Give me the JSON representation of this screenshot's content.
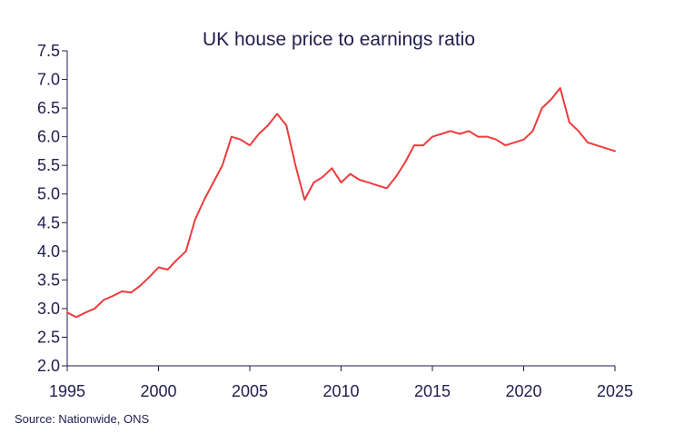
{
  "chart_data": {
    "type": "line",
    "title": "UK house price to earnings ratio",
    "xlabel": "",
    "ylabel": "",
    "source": "Source: Nationwide, ONS",
    "xlim": [
      1995,
      2025
    ],
    "ylim": [
      2.0,
      7.5
    ],
    "x_ticks": [
      1995,
      2000,
      2005,
      2010,
      2015,
      2020,
      2025
    ],
    "x_tick_labels": [
      "1995",
      "2000",
      "2005",
      "2010",
      "2015",
      "2020",
      "2025"
    ],
    "y_ticks": [
      2.0,
      2.5,
      3.0,
      3.5,
      4.0,
      4.5,
      5.0,
      5.5,
      6.0,
      6.5,
      7.0,
      7.5
    ],
    "y_tick_labels": [
      "2.0",
      "2.5",
      "3.0",
      "3.5",
      "4.0",
      "4.5",
      "5.0",
      "5.5",
      "6.0",
      "6.5",
      "7.0",
      "7.5"
    ],
    "grid": false,
    "legend": "none",
    "colors": {
      "line": "#ee3b3b",
      "axis": "#1f1d4f",
      "text": "#1f1d4f"
    },
    "series": [
      {
        "name": "UK house price to earnings ratio",
        "x": [
          1995.0,
          1995.5,
          1996.0,
          1996.5,
          1997.0,
          1997.5,
          1998.0,
          1998.5,
          1999.0,
          1999.5,
          2000.0,
          2000.5,
          2001.0,
          2001.5,
          2002.0,
          2002.5,
          2003.0,
          2003.5,
          2004.0,
          2004.5,
          2005.0,
          2005.5,
          2006.0,
          2006.5,
          2007.0,
          2007.5,
          2008.0,
          2008.5,
          2009.0,
          2009.5,
          2010.0,
          2010.5,
          2011.0,
          2011.5,
          2012.0,
          2012.5,
          2013.0,
          2013.5,
          2014.0,
          2014.5,
          2015.0,
          2015.5,
          2016.0,
          2016.5,
          2017.0,
          2017.5,
          2018.0,
          2018.5,
          2019.0,
          2019.5,
          2020.0,
          2020.5,
          2021.0,
          2021.5,
          2022.0,
          2022.5,
          2023.0,
          2023.5,
          2024.0,
          2024.5,
          2025.0
        ],
        "values": [
          2.93,
          2.85,
          2.93,
          3.0,
          3.15,
          3.22,
          3.3,
          3.28,
          3.4,
          3.55,
          3.72,
          3.68,
          3.85,
          4.0,
          4.55,
          4.9,
          5.2,
          5.5,
          6.0,
          5.95,
          5.85,
          6.05,
          6.2,
          6.4,
          6.2,
          5.5,
          4.9,
          5.2,
          5.3,
          5.45,
          5.2,
          5.35,
          5.25,
          5.2,
          5.15,
          5.1,
          5.3,
          5.55,
          5.85,
          5.85,
          6.0,
          6.05,
          6.1,
          6.05,
          6.1,
          6.0,
          6.0,
          5.95,
          5.85,
          5.9,
          5.95,
          6.1,
          6.5,
          6.65,
          6.85,
          6.25,
          6.1,
          5.9,
          5.85,
          5.8,
          5.75
        ]
      }
    ]
  }
}
